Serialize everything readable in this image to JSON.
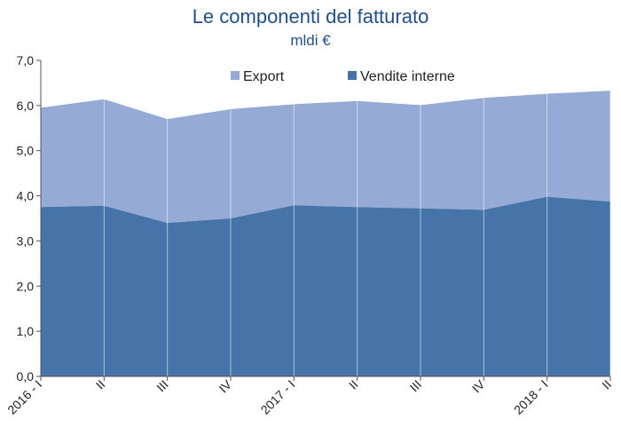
{
  "chart_data": {
    "type": "area",
    "stacked": true,
    "title": "Le componenti del fatturato",
    "subtitle": "mldi €",
    "categories": [
      "2016 - I",
      "II",
      "III",
      "IV",
      "2017 - I",
      "II",
      "III",
      "IV",
      "2018 - I",
      "II"
    ],
    "series": [
      {
        "name": "Vendite interne",
        "values": [
          3.75,
          3.78,
          3.4,
          3.5,
          3.79,
          3.75,
          3.72,
          3.69,
          3.98,
          3.87
        ],
        "color": "#4674a8"
      },
      {
        "name": "Export",
        "values": [
          2.2,
          2.36,
          2.3,
          2.42,
          2.24,
          2.35,
          2.29,
          2.48,
          2.28,
          2.46
        ],
        "color": "#95aad4"
      }
    ],
    "ylim": [
      0,
      7
    ],
    "yticks": [
      "0,0",
      "1,0",
      "2,0",
      "3,0",
      "4,0",
      "5,0",
      "6,0",
      "7,0"
    ],
    "grid": "vertical",
    "legend_position": "top"
  }
}
